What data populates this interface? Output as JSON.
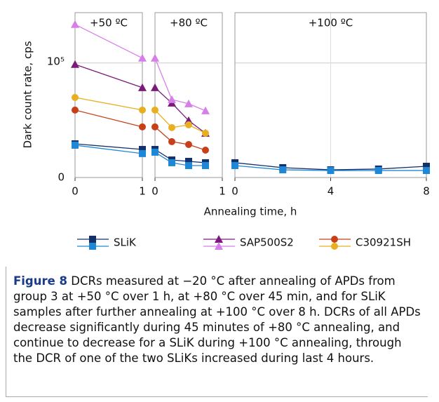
{
  "chart_data": {
    "type": "line",
    "ylabel": "Dark count rate, cps",
    "xlabel": "Annealing time, h",
    "ylim": [
      0,
      144000
    ],
    "yticks": [
      0,
      {
        "value": 100000,
        "label": "10⁵"
      }
    ],
    "grid": true,
    "legend": [
      {
        "name": "SLiK",
        "marker": "square",
        "colors": [
          "#14306b",
          "#1e88d6"
        ]
      },
      {
        "name": "SAP500S2",
        "marker": "triangle",
        "colors": [
          "#7a1a7a",
          "#d77ee8"
        ]
      },
      {
        "name": "C30921SH",
        "marker": "circle",
        "colors": [
          "#c8401a",
          "#e8b020"
        ]
      }
    ],
    "panels": [
      {
        "title": "+50 ºC",
        "xlim": [
          0,
          1
        ],
        "xticks": [
          0,
          1
        ],
        "x": [
          0,
          1
        ],
        "groups": [
          [
            [
              29400,
              24500
            ],
            [
              28200,
              20900
            ]
          ],
          [
            [
              98800,
              78500
            ],
            [
              133700,
              104300
            ]
          ],
          [
            [
              58900,
              44200
            ],
            [
              69900,
              58900
            ]
          ]
        ]
      },
      {
        "title": "+80 ºC",
        "xlim": [
          0,
          1
        ],
        "xticks": [
          0,
          1
        ],
        "x": [
          0,
          0.25,
          0.5,
          0.75
        ],
        "groups": [
          [
            [
              24500,
              15300,
              14100,
              12900
            ],
            [
              22100,
              12900,
              10400,
              10400
            ]
          ],
          [
            [
              78500,
              65000,
              49700,
              38700
            ],
            [
              104300,
              68100,
              64400,
              58300
            ]
          ],
          [
            [
              44200,
              31300,
              28800,
              23900
            ],
            [
              58900,
              43600,
              46000,
              38700
            ]
          ]
        ]
      },
      {
        "title": "+100 ºC",
        "xlim": [
          0,
          8
        ],
        "xticks": [
          0,
          4,
          8
        ],
        "x": [
          0,
          2,
          4,
          6,
          8
        ],
        "groups": [
          [
            [
              12900,
              8600,
              6700,
              7400,
              9800
            ],
            [
              10400,
              6700,
              6100,
              6100,
              6100
            ]
          ]
        ]
      }
    ]
  },
  "caption": {
    "label": "Figure 8",
    "text": "DCRs measured at −20 °C after annealing of APDs from group 3 at +50 °C over 1 h, at +80 °C over 45 min, and for SLiK samples after further annealing at +100 °C over 8 h. DCRs of all APDs decrease significantly during 45 minutes of +80 °C annealing, and continue to decrease for a SLiK during +100 °C annealing, through the DCR of one of the two SLiKs increased during last 4 hours."
  }
}
